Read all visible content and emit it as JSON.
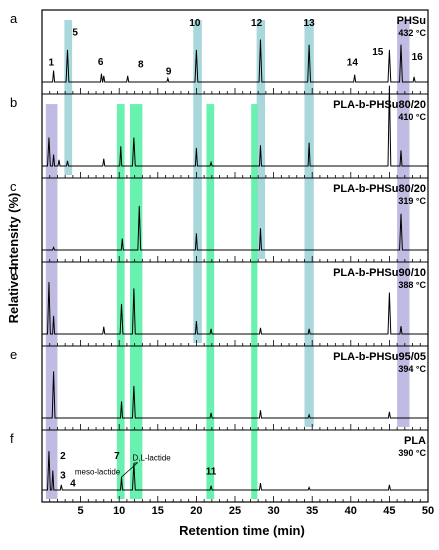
{
  "chart_data": {
    "type": "line",
    "xlabel": "Retention time (min)",
    "ylabel": "Relative Intensity (%)",
    "xlim": [
      0,
      50
    ],
    "xticks": [
      5,
      10,
      15,
      20,
      25,
      30,
      35,
      40,
      45,
      50
    ],
    "grid": false,
    "highlight_bands": [
      {
        "color": "#9fd3d8",
        "x": [
          2.9,
          3.9
        ],
        "panels": [
          "a",
          "b"
        ]
      },
      {
        "color": "#9fd3d8",
        "x": [
          19.6,
          20.7
        ],
        "panels": [
          "a",
          "b",
          "c",
          "d"
        ]
      },
      {
        "color": "#9fd3d8",
        "x": [
          27.8,
          28.9
        ],
        "panels": [
          "a",
          "b",
          "c"
        ]
      },
      {
        "color": "#9fd3d8",
        "x": [
          34.0,
          35.2
        ],
        "panels": [
          "a",
          "b",
          "c",
          "d",
          "e"
        ]
      },
      {
        "color": "#b8b4e0",
        "x": [
          0.5,
          2.0
        ],
        "panels": [
          "b",
          "c",
          "d",
          "e",
          "f"
        ]
      },
      {
        "color": "#b8b4e0",
        "x": [
          46.0,
          47.6
        ],
        "panels": [
          "a",
          "b",
          "c",
          "d",
          "e"
        ]
      },
      {
        "color": "#59f0a6",
        "x": [
          9.7,
          10.7
        ],
        "panels": [
          "b",
          "c",
          "d",
          "e",
          "f"
        ]
      },
      {
        "color": "#59f0a6",
        "x": [
          11.4,
          13.0
        ],
        "panels": [
          "b",
          "c",
          "d",
          "e",
          "f"
        ]
      },
      {
        "color": "#59f0a6",
        "x": [
          21.3,
          22.3
        ],
        "panels": [
          "b",
          "c",
          "d",
          "e",
          "f"
        ]
      },
      {
        "color": "#59f0a6",
        "x": [
          27.1,
          27.9
        ],
        "panels": [
          "b",
          "c",
          "d",
          "e",
          "f"
        ]
      }
    ],
    "panels": [
      {
        "letter": "a",
        "sample": "PHSu",
        "temperature": "432 °C",
        "peaks": [
          [
            1.5,
            0.22
          ],
          [
            3.3,
            0.62
          ],
          [
            7.7,
            0.16
          ],
          [
            8.0,
            0.12
          ],
          [
            11.1,
            0.12
          ],
          [
            16.3,
            0.07
          ],
          [
            20.0,
            0.62
          ],
          [
            28.3,
            0.82
          ],
          [
            34.6,
            0.72
          ],
          [
            40.5,
            0.14
          ],
          [
            45.0,
            0.62
          ],
          [
            46.5,
            0.72
          ],
          [
            48.2,
            0.1
          ]
        ],
        "labels": [
          {
            "text": "1",
            "x": 1.2,
            "y": 0.32
          },
          {
            "text": "5",
            "x": 4.3,
            "y": 0.9
          },
          {
            "text": "6",
            "x": 7.6,
            "y": 0.33
          },
          {
            "text": "8",
            "x": 12.8,
            "y": 0.28
          },
          {
            "text": "9",
            "x": 16.4,
            "y": 0.14
          },
          {
            "text": "10",
            "x": 19.8,
            "y": 1.08
          },
          {
            "text": "12",
            "x": 27.8,
            "y": 1.08
          },
          {
            "text": "13",
            "x": 34.6,
            "y": 1.08
          },
          {
            "text": "14",
            "x": 40.2,
            "y": 0.32
          },
          {
            "text": "15",
            "x": 43.5,
            "y": 0.52
          },
          {
            "text": "16",
            "x": 48.6,
            "y": 0.42
          }
        ]
      },
      {
        "letter": "b",
        "sample": "PLA-b-PHSu80/20",
        "temperature": "410 °C",
        "peaks": [
          [
            0.9,
            0.55
          ],
          [
            1.5,
            0.22
          ],
          [
            2.2,
            0.12
          ],
          [
            3.3,
            0.1
          ],
          [
            8.0,
            0.14
          ],
          [
            10.2,
            0.38
          ],
          [
            11.9,
            0.55
          ],
          [
            20.0,
            0.35
          ],
          [
            21.9,
            0.07
          ],
          [
            28.3,
            0.4
          ],
          [
            34.6,
            0.45
          ],
          [
            45.0,
            1.55
          ],
          [
            46.5,
            0.3
          ]
        ],
        "labels": []
      },
      {
        "letter": "c",
        "sample": "PLA-b-PHSu80/20",
        "temperature": "319 °C",
        "peaks": [
          [
            1.5,
            0.05
          ],
          [
            10.4,
            0.22
          ],
          [
            12.6,
            0.85
          ],
          [
            20.0,
            0.32
          ],
          [
            28.3,
            0.42
          ],
          [
            46.5,
            0.7
          ]
        ],
        "labels": []
      },
      {
        "letter": "d",
        "sample": "PLA-b-PHSu90/10",
        "temperature": "388 °C",
        "peaks": [
          [
            0.9,
            1.0
          ],
          [
            1.5,
            0.35
          ],
          [
            8.0,
            0.14
          ],
          [
            10.3,
            0.58
          ],
          [
            11.9,
            0.88
          ],
          [
            20.0,
            0.25
          ],
          [
            21.9,
            0.1
          ],
          [
            28.3,
            0.12
          ],
          [
            34.6,
            0.1
          ],
          [
            45.0,
            0.8
          ],
          [
            46.5,
            0.15
          ]
        ],
        "labels": []
      },
      {
        "letter": "e",
        "sample": "PLA-b-PHSu95/05",
        "temperature": "394 °C",
        "peaks": [
          [
            1.5,
            0.9
          ],
          [
            10.3,
            0.32
          ],
          [
            11.9,
            0.62
          ],
          [
            21.9,
            0.1
          ],
          [
            28.3,
            0.15
          ],
          [
            34.6,
            0.06
          ],
          [
            45.0,
            0.12
          ]
        ],
        "labels": []
      },
      {
        "letter": "f",
        "sample": "PLA",
        "temperature": "390 °C",
        "peaks": [
          [
            0.9,
            0.9
          ],
          [
            1.4,
            0.45
          ],
          [
            2.5,
            0.12
          ],
          [
            10.3,
            0.3
          ],
          [
            11.9,
            0.62
          ],
          [
            21.9,
            0.1
          ],
          [
            28.3,
            0.16
          ],
          [
            34.6,
            0.06
          ],
          [
            45.0,
            0.12
          ]
        ],
        "labels": [
          {
            "text": "2",
            "x": 2.7,
            "y": 0.72
          },
          {
            "text": "3",
            "x": 2.7,
            "y": 0.27
          },
          {
            "text": "4",
            "x": 4.0,
            "y": 0.08
          },
          {
            "text": "7",
            "x": 9.7,
            "y": 0.72
          },
          {
            "text": "meso-lactide",
            "x": 7.2,
            "y": 0.36
          },
          {
            "text": "D,L-lactide",
            "x": 14.2,
            "y": 0.68
          },
          {
            "text": "11",
            "x": 21.9,
            "y": 0.36
          }
        ]
      }
    ]
  }
}
